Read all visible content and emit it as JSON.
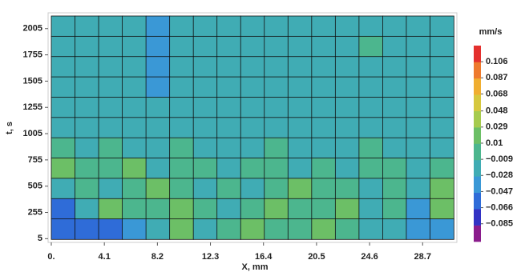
{
  "chart_data": {
    "type": "heatmap",
    "xlabel": "X, mm",
    "ylabel": "t, s",
    "colorbar_label": "mm/s",
    "xlim": [
      0,
      31.1
    ],
    "ylim": [
      0,
      2125
    ],
    "xticks": [
      {
        "value": 0,
        "label": "0."
      },
      4.1,
      8.2,
      12.3,
      16.4,
      20.5,
      24.6,
      28.7
    ],
    "yticks": [
      5,
      255,
      505,
      755,
      1005,
      1255,
      1505,
      1755,
      2005
    ],
    "clim": [
      -0.106,
      0.125
    ],
    "cticks": [
      0.106,
      0.087,
      0.068,
      0.048,
      0.029,
      0.01,
      {
        "value": -0.009,
        "label": "−0.009"
      },
      {
        "value": -0.028,
        "label": "−0.028"
      },
      {
        "value": -0.047,
        "label": "−0.047"
      },
      {
        "value": -0.066,
        "label": "−0.066"
      },
      {
        "value": -0.085,
        "label": "−0.085"
      }
    ],
    "colors": [
      "#8a1c8c",
      "#3232c4",
      "#2f6cd8",
      "#3a98d6",
      "#40acb4",
      "#4cb68e",
      "#6cbf66",
      "#a6cb4e",
      "#d6c83e",
      "#f0ae30",
      "#ee7a2e",
      "#e4302e"
    ],
    "grid": true,
    "z": [
      [
        -0.02,
        -0.015,
        -0.02,
        -0.015,
        -0.04,
        -0.02,
        -0.015,
        -0.02,
        -0.015,
        -0.02,
        -0.015,
        -0.02,
        -0.01,
        -0.015,
        -0.02,
        -0.015,
        -0.02
      ],
      [
        -0.015,
        -0.02,
        -0.01,
        -0.015,
        -0.03,
        -0.015,
        -0.02,
        -0.015,
        -0.01,
        -0.015,
        -0.02,
        -0.01,
        -0.015,
        -0.005,
        -0.015,
        -0.02,
        -0.015
      ],
      [
        -0.02,
        -0.015,
        -0.02,
        -0.015,
        -0.045,
        -0.02,
        -0.015,
        -0.01,
        -0.015,
        -0.02,
        -0.015,
        -0.01,
        -0.02,
        -0.015,
        -0.01,
        -0.02,
        -0.015
      ],
      [
        -0.015,
        -0.01,
        -0.015,
        -0.02,
        -0.03,
        -0.015,
        -0.02,
        -0.015,
        -0.02,
        -0.015,
        -0.01,
        -0.015,
        -0.02,
        -0.01,
        -0.015,
        -0.02,
        -0.02
      ],
      [
        -0.01,
        -0.015,
        -0.02,
        -0.015,
        -0.025,
        -0.02,
        -0.015,
        -0.01,
        -0.015,
        -0.02,
        -0.015,
        -0.02,
        -0.015,
        -0.02,
        -0.015,
        -0.02,
        -0.015
      ],
      [
        -0.015,
        -0.01,
        -0.015,
        -0.01,
        -0.02,
        -0.015,
        -0.01,
        -0.015,
        -0.02,
        -0.015,
        -0.01,
        -0.015,
        -0.02,
        -0.015,
        -0.01,
        -0.015,
        -0.02
      ],
      [
        -0.005,
        -0.01,
        0.0,
        -0.01,
        -0.015,
        -0.005,
        -0.01,
        -0.015,
        -0.01,
        -0.005,
        -0.01,
        -0.015,
        -0.01,
        -0.005,
        -0.01,
        -0.015,
        -0.02
      ],
      [
        0.012,
        0.0,
        -0.005,
        0.012,
        -0.01,
        -0.005,
        0.0,
        -0.01,
        -0.005,
        0.0,
        -0.01,
        -0.005,
        -0.01,
        0.0,
        -0.005,
        -0.01,
        0.0
      ],
      [
        -0.01,
        0.005,
        -0.01,
        -0.005,
        0.012,
        0.0,
        -0.01,
        0.005,
        -0.01,
        -0.005,
        0.012,
        0.0,
        -0.005,
        -0.01,
        0.0,
        -0.02,
        0.02
      ],
      [
        -0.05,
        -0.01,
        0.012,
        0.0,
        -0.005,
        0.012,
        0.0,
        -0.01,
        0.005,
        0.012,
        -0.005,
        0.0,
        0.012,
        -0.01,
        -0.005,
        -0.03,
        0.015
      ],
      [
        -0.05,
        -0.05,
        -0.05,
        -0.045,
        -0.02,
        0.012,
        -0.01,
        0.0,
        0.012,
        -0.005,
        0.0,
        0.012,
        -0.005,
        -0.01,
        -0.02,
        -0.04,
        -0.03
      ]
    ]
  }
}
